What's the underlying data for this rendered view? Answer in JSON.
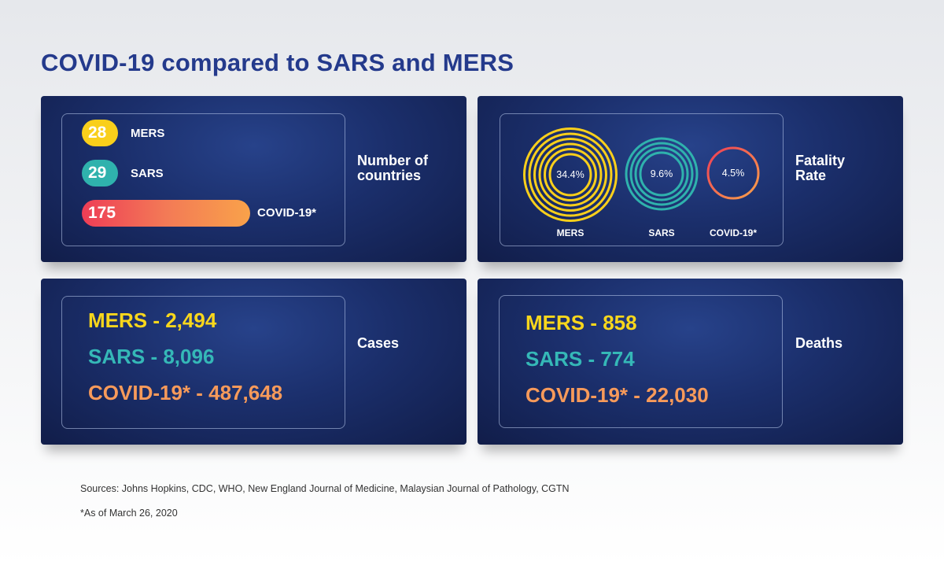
{
  "title": "COVID-19 compared to SARS and MERS",
  "colors": {
    "mers": "#f9cf1b",
    "sars": "#2fb2ad",
    "covid": "#f79a5a",
    "covid_start": "#ee3d56",
    "title": "#243a8c",
    "panel": "#1b2f6c"
  },
  "countries": {
    "label": "Number of\ncountries",
    "items": [
      {
        "name": "MERS",
        "value": "28"
      },
      {
        "name": "SARS",
        "value": "29"
      },
      {
        "name": "COVID-19*",
        "value": "175"
      }
    ]
  },
  "fatality": {
    "label": "Fatality\nRate",
    "items": [
      {
        "name": "MERS",
        "value": "34.4%"
      },
      {
        "name": "SARS",
        "value": "9.6%"
      },
      {
        "name": "COVID-19*",
        "value": "4.5%"
      }
    ]
  },
  "cases": {
    "label": "Cases",
    "items": [
      {
        "text": "MERS - 2,494"
      },
      {
        "text": "SARS - 8,096"
      },
      {
        "text": "COVID-19* - 487,648"
      }
    ]
  },
  "deaths": {
    "label": "Deaths",
    "items": [
      {
        "text": "MERS - 858"
      },
      {
        "text": "SARS - 774"
      },
      {
        "text": "COVID-19* - 22,030"
      }
    ]
  },
  "footer": {
    "sources": "Sources: Johns Hopkins, CDC, WHO, New England Journal of Medicine, Malaysian Journal of Pathology, CGTN",
    "as_of": "*As of March 26, 2020"
  },
  "chart_data": [
    {
      "type": "bar",
      "ylabel": "Number of countries",
      "categories": [
        "MERS",
        "SARS",
        "COVID-19*"
      ],
      "values": [
        28,
        29,
        175
      ]
    },
    {
      "type": "pie",
      "ylabel": "Fatality Rate",
      "categories": [
        "MERS",
        "SARS",
        "COVID-19*"
      ],
      "values": [
        34.4,
        9.6,
        4.5
      ]
    },
    {
      "type": "table",
      "ylabel": "Cases",
      "categories": [
        "MERS",
        "SARS",
        "COVID-19*"
      ],
      "values": [
        2494,
        8096,
        487648
      ]
    },
    {
      "type": "table",
      "ylabel": "Deaths",
      "categories": [
        "MERS",
        "SARS",
        "COVID-19*"
      ],
      "values": [
        858,
        774,
        22030
      ]
    }
  ]
}
